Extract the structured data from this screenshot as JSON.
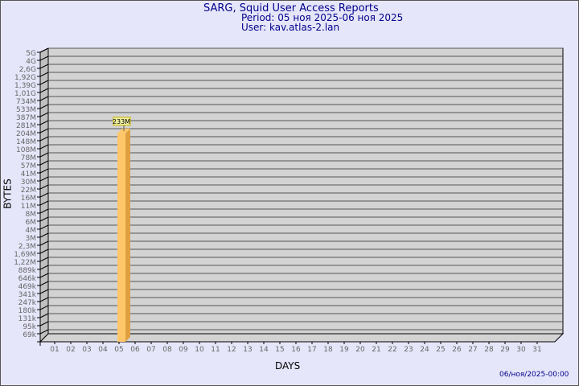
{
  "header": {
    "title": "SARG, Squid User Access Reports",
    "period": "Period: 05 ноя 2025-06 ноя 2025",
    "user": "User: kav.atlas-2.lan"
  },
  "footer": {
    "timestamp": "06/ноя/2025-00:00"
  },
  "colors": {
    "background": "#e6e6fa",
    "plot": "#d3d3d3",
    "bar": "#ffc76a",
    "bar_side": "#e0a040",
    "title": "#00008b"
  },
  "chart_data": {
    "type": "bar",
    "xlabel": "DAYS",
    "ylabel": "BYTES",
    "y_scale": "log",
    "grid": true,
    "categories": [
      "01",
      "02",
      "03",
      "04",
      "05",
      "06",
      "07",
      "08",
      "09",
      "10",
      "11",
      "12",
      "13",
      "14",
      "15",
      "16",
      "17",
      "18",
      "19",
      "20",
      "21",
      "22",
      "23",
      "24",
      "25",
      "26",
      "27",
      "28",
      "29",
      "30",
      "31"
    ],
    "y_ticks": [
      "5G",
      "4G",
      "2,6G",
      "1,92G",
      "1,39G",
      "1,01G",
      "734M",
      "533M",
      "387M",
      "281M",
      "204M",
      "148M",
      "108M",
      "78M",
      "57M",
      "41M",
      "30M",
      "22M",
      "16M",
      "11M",
      "8M",
      "6M",
      "4M",
      "3M",
      "2,3M",
      "1,69M",
      "1,22M",
      "889k",
      "646k",
      "469k",
      "341k",
      "247k",
      "180k",
      "131k",
      "95k",
      "69k"
    ],
    "bars": [
      {
        "category": "05",
        "value": 233000000,
        "label": "233M"
      }
    ]
  }
}
